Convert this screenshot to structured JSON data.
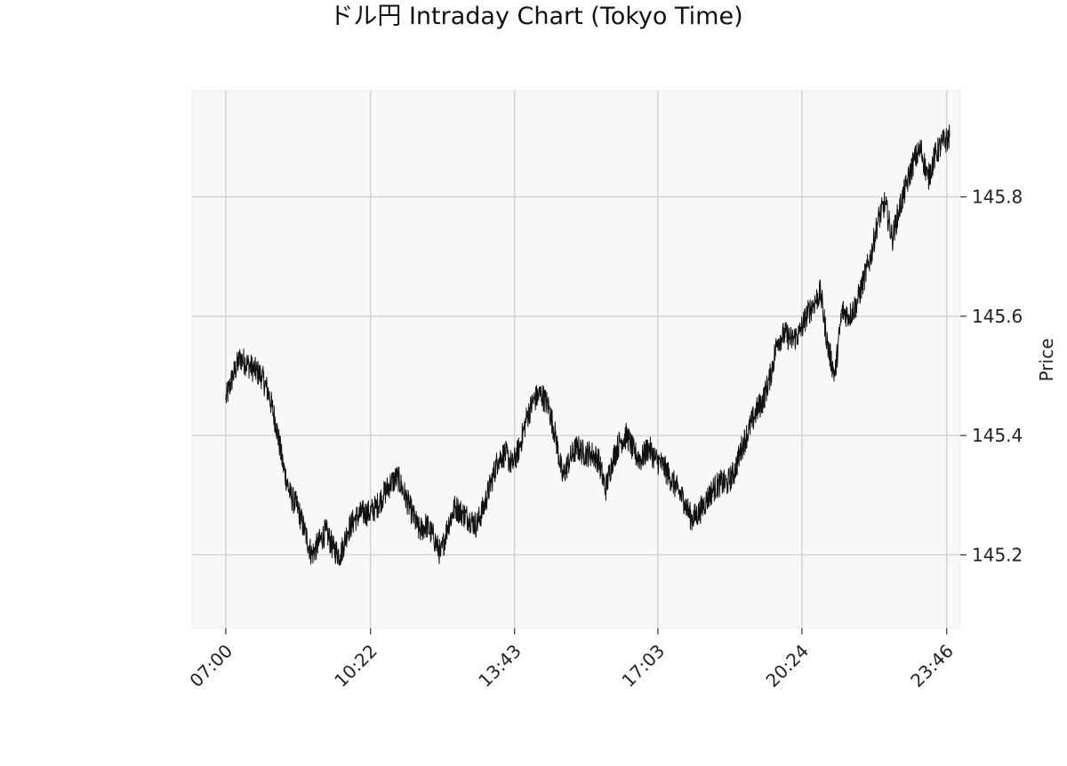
{
  "chart_data": {
    "type": "line",
    "title": "ドル円 Intraday Chart (Tokyo Time)",
    "xlabel": "",
    "ylabel": "Price",
    "x_tick_labels": [
      "07:00",
      "10:22",
      "13:43",
      "17:03",
      "20:24",
      "23:46"
    ],
    "y_ticks": [
      145.2,
      145.4,
      145.6,
      145.8
    ],
    "y_tick_labels": [
      "145.2",
      "145.4",
      "145.6",
      "145.8"
    ],
    "ylim": [
      145.077,
      145.978
    ],
    "xlim": [
      "06:13",
      "24:05"
    ],
    "y_axis_position": "right",
    "grid": true,
    "line_color": "#111111",
    "background_color": "#f8f8f8",
    "grid_color": "#d4d4d4",
    "series": [
      {
        "x": [
          "07:00",
          "07:10",
          "07:20",
          "07:30",
          "07:40",
          "07:50",
          "08:00",
          "08:10",
          "08:20",
          "08:30",
          "08:40",
          "08:50",
          "09:00",
          "09:10",
          "09:20",
          "09:30",
          "09:40",
          "09:50",
          "10:00",
          "10:10",
          "10:20",
          "10:30",
          "10:40",
          "10:50",
          "11:00",
          "11:10",
          "11:20",
          "11:30",
          "11:40",
          "11:50",
          "12:00",
          "12:10",
          "12:20",
          "12:30",
          "12:40",
          "12:50",
          "13:00",
          "13:10",
          "13:20",
          "13:30",
          "13:40",
          "13:50",
          "14:00",
          "14:10",
          "14:20",
          "14:30",
          "14:40",
          "14:50",
          "15:00",
          "15:10",
          "15:20",
          "15:30",
          "15:40",
          "15:50",
          "16:00",
          "16:10",
          "16:20",
          "16:30",
          "16:40",
          "16:50",
          "17:00",
          "17:10",
          "17:20",
          "17:30",
          "17:40",
          "17:50",
          "18:00",
          "18:10",
          "18:20",
          "18:30",
          "18:40",
          "18:50",
          "19:00",
          "19:10",
          "19:20",
          "19:30",
          "19:40",
          "19:50",
          "20:00",
          "20:10",
          "20:20",
          "20:30",
          "20:40",
          "20:50",
          "21:00",
          "21:10",
          "21:20",
          "21:30",
          "21:40",
          "21:50",
          "22:00",
          "22:10",
          "22:20",
          "22:30",
          "22:40",
          "22:50",
          "23:00",
          "23:10",
          "23:20",
          "23:30",
          "23:40",
          "23:50"
        ],
        "values": [
          145.46,
          145.5,
          145.53,
          145.52,
          145.51,
          145.5,
          145.47,
          145.42,
          145.35,
          145.3,
          145.28,
          145.24,
          145.2,
          145.22,
          145.24,
          145.21,
          145.2,
          145.24,
          145.26,
          145.27,
          145.27,
          145.28,
          145.3,
          145.32,
          145.33,
          145.3,
          145.27,
          145.24,
          145.25,
          145.23,
          145.2,
          145.25,
          145.28,
          145.27,
          145.26,
          145.25,
          145.28,
          145.32,
          145.36,
          145.37,
          145.35,
          145.38,
          145.43,
          145.46,
          145.47,
          145.45,
          145.4,
          145.33,
          145.36,
          145.38,
          145.37,
          145.37,
          145.36,
          145.31,
          145.36,
          145.39,
          145.4,
          145.37,
          145.36,
          145.38,
          145.36,
          145.35,
          145.33,
          145.31,
          145.29,
          145.26,
          145.27,
          145.29,
          145.31,
          145.32,
          145.32,
          145.34,
          145.38,
          145.41,
          145.44,
          145.46,
          145.5,
          145.56,
          145.57,
          145.56,
          145.57,
          145.6,
          145.62,
          145.64,
          145.55,
          145.5,
          145.61,
          145.6,
          145.62,
          145.66,
          145.7,
          145.76,
          145.79,
          145.73,
          145.78,
          145.82,
          145.86,
          145.88,
          145.83,
          145.87,
          145.89,
          145.9
        ]
      }
    ]
  }
}
